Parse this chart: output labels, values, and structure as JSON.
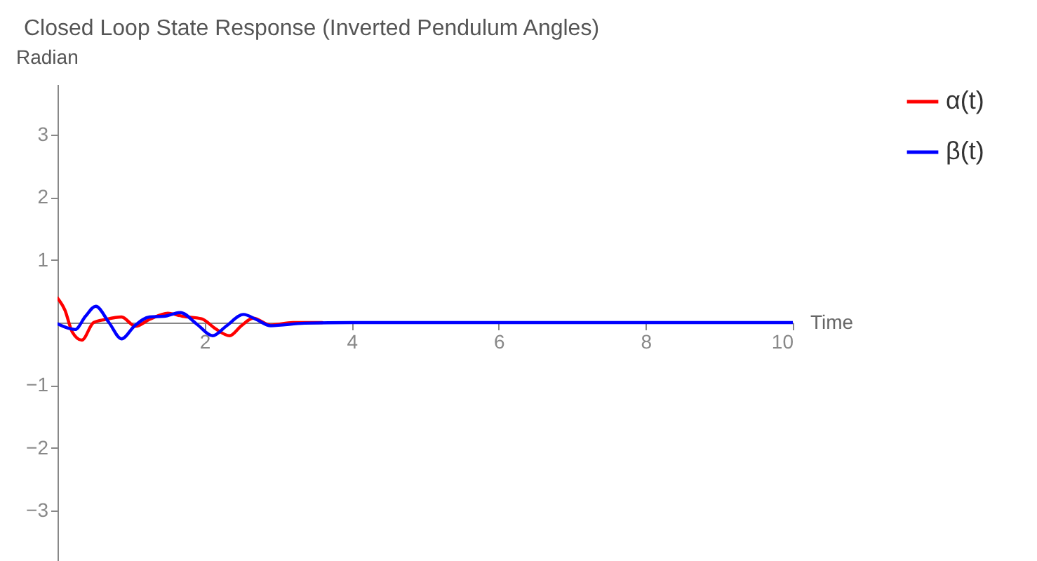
{
  "chart_data": {
    "type": "line",
    "title": "Closed Loop State Response (Inverted Pendulum Angles)",
    "xlabel": "Time",
    "ylabel": "Radian",
    "xlim": [
      0,
      10
    ],
    "ylim": [
      -3.8,
      3.8
    ],
    "xticks": [
      2,
      4,
      6,
      8,
      10
    ],
    "yticks": [
      -3,
      -2,
      -1,
      1,
      2,
      3
    ],
    "grid": false,
    "legend": "right",
    "series": [
      {
        "name": "α(t)",
        "color": "#ff0000",
        "x": [
          0,
          0.1,
          0.2,
          0.33,
          0.49,
          0.65,
          0.87,
          1.06,
          1.25,
          1.5,
          1.7,
          1.96,
          2.15,
          2.34,
          2.5,
          2.66,
          2.9,
          3.2,
          3.6
        ],
        "values": [
          0.39,
          0.2,
          -0.15,
          -0.28,
          0,
          0.05,
          0.09,
          -0.06,
          0.05,
          0.15,
          0.1,
          0.06,
          -0.1,
          -0.21,
          -0.05,
          0.07,
          -0.04,
          0,
          0
        ]
      },
      {
        "name": "β(t)",
        "color": "#0000ff",
        "x": [
          0,
          0.24,
          0.38,
          0.52,
          0.7,
          0.87,
          1.05,
          1.25,
          1.45,
          1.67,
          1.9,
          2.11,
          2.3,
          2.53,
          2.7,
          2.9,
          3.36,
          4,
          5,
          6,
          7,
          8,
          9,
          10
        ],
        "values": [
          -0.02,
          -0.11,
          0.1,
          0.26,
          0,
          -0.26,
          -0.05,
          0.09,
          0.1,
          0.16,
          -0.03,
          -0.21,
          -0.05,
          0.13,
          0.05,
          -0.05,
          -0.01,
          0,
          0,
          0,
          0,
          0,
          0,
          0
        ]
      }
    ]
  }
}
